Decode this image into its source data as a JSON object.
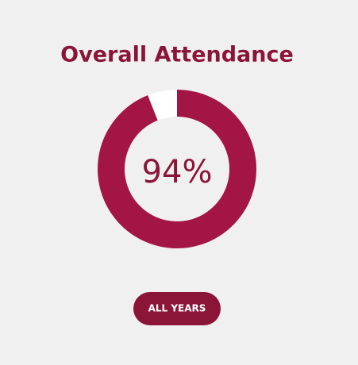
{
  "chart_data": {
    "type": "donut",
    "title": "Overall Attendance",
    "values": [
      94,
      6
    ],
    "value_labels": [
      "94%",
      null
    ],
    "colors": [
      "#a31545",
      "#ffffff"
    ]
  },
  "button": {
    "label": "ALL YEARS"
  }
}
